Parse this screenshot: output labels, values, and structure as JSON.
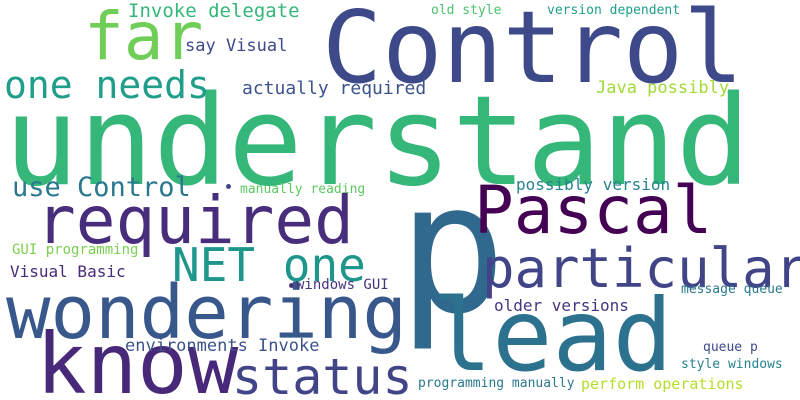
{
  "words": [
    {
      "text": "understand",
      "color": "#35b779"
    },
    {
      "text": "Control",
      "color": "#3e4989"
    },
    {
      "text": "p",
      "color": "#31688e"
    },
    {
      "text": "lead",
      "color": "#2c728e"
    },
    {
      "text": "Pascal",
      "color": "#440154"
    },
    {
      "text": "wondering",
      "color": "#38588c"
    },
    {
      "text": "required",
      "color": "#472d7b"
    },
    {
      "text": "know",
      "color": "#482878"
    },
    {
      "text": "particular",
      "color": "#414487"
    },
    {
      "text": "far",
      "color": "#6ece58"
    },
    {
      "text": "status",
      "color": "#414487"
    },
    {
      "text": "NET one",
      "color": "#1f968b"
    },
    {
      "text": "one needs",
      "color": "#1f9e89"
    },
    {
      "text": "use Control",
      "color": "#2a788e"
    },
    {
      "text": "Invoke delegate",
      "color": "#35b779"
    },
    {
      "text": "say Visual",
      "color": "#3e4989"
    },
    {
      "text": "actually required",
      "color": "#3b528b"
    },
    {
      "text": "environments Invoke",
      "color": "#3b528b"
    },
    {
      "text": "Visual Basic",
      "color": "#472a7a"
    },
    {
      "text": "GUI programming",
      "color": "#7ad151"
    },
    {
      "text": "Java possibly",
      "color": "#a2da37"
    },
    {
      "text": "possibly version",
      "color": "#26828e"
    },
    {
      "text": "manually reading",
      "color": "#5ec962"
    },
    {
      "text": "windows GUI",
      "color": "#46337e"
    },
    {
      "text": "older versions",
      "color": "#463480"
    },
    {
      "text": "message queue",
      "color": "#2a788e"
    },
    {
      "text": "queue p",
      "color": "#3e4989"
    },
    {
      "text": "style windows",
      "color": "#26828e"
    },
    {
      "text": "programming manually",
      "color": "#2a788e"
    },
    {
      "text": "perform operations",
      "color": "#b5de2b"
    },
    {
      "text": "old style",
      "color": "#4ac16d"
    },
    {
      "text": "version dependent",
      "color": "#1f9e89"
    }
  ]
}
